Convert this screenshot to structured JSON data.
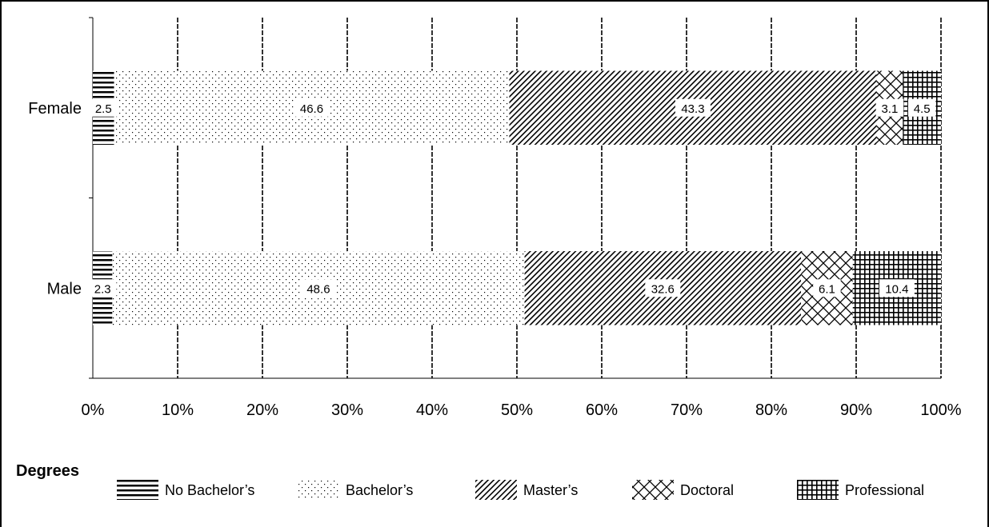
{
  "chart_data": {
    "type": "bar",
    "orientation": "horizontal",
    "stacked": "percent",
    "categories": [
      "Female",
      "Male"
    ],
    "series": [
      {
        "name": "No Bachelor’s",
        "values": [
          2.5,
          2.3
        ],
        "pattern": "horizontal-lines"
      },
      {
        "name": "Bachelor’s",
        "values": [
          46.6,
          48.6
        ],
        "pattern": "dots"
      },
      {
        "name": "Master’s",
        "values": [
          43.3,
          32.6
        ],
        "pattern": "diagonal-lines"
      },
      {
        "name": "Doctoral",
        "values": [
          3.1,
          6.1
        ],
        "pattern": "diamond-lattice"
      },
      {
        "name": "Professional",
        "values": [
          4.5,
          10.4
        ],
        "pattern": "grid"
      }
    ],
    "xticks": [
      "0%",
      "10%",
      "20%",
      "30%",
      "40%",
      "50%",
      "60%",
      "70%",
      "80%",
      "90%",
      "100%"
    ],
    "xlim": [
      0,
      100
    ],
    "grid": "vertical dashed",
    "legend_title": "Degrees",
    "legend_position": "bottom"
  }
}
